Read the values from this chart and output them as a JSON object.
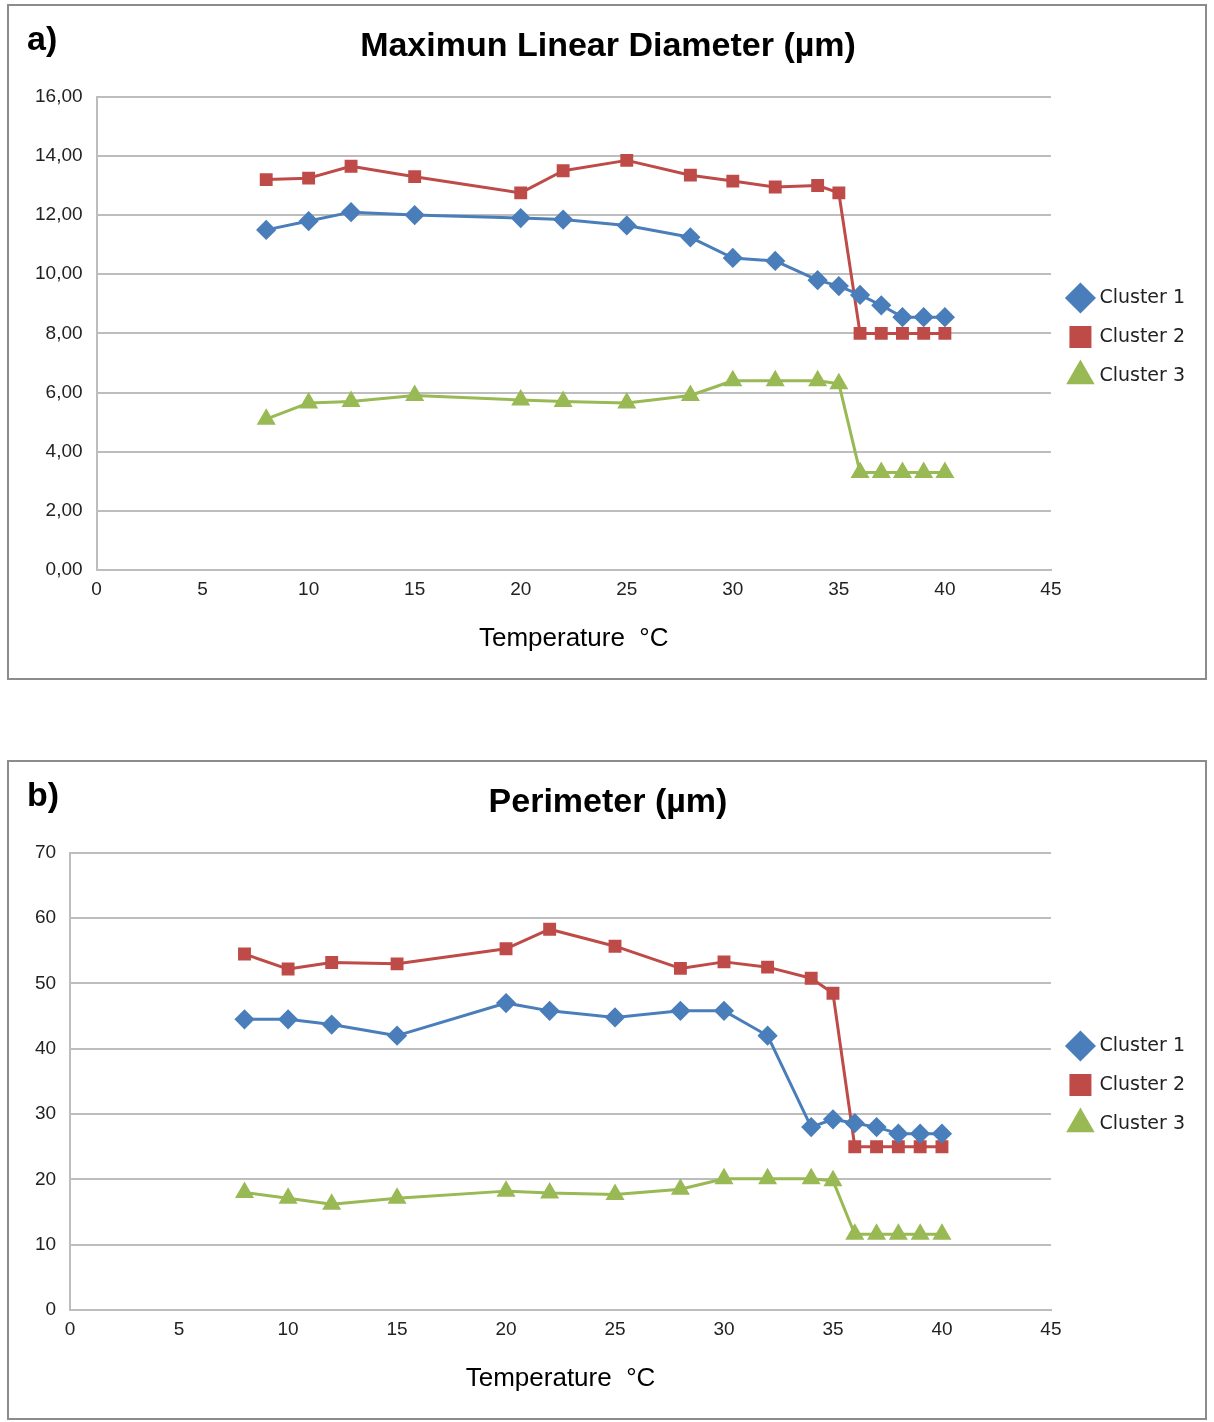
{
  "chart_data": [
    {
      "type": "line",
      "title": "Maximun Linear Diameter (µm)",
      "xlabel": "Temperature  °C",
      "annotations": [
        "a)"
      ],
      "legend": "right",
      "grid": "y",
      "x": [
        8,
        10,
        12,
        15,
        20,
        22,
        25,
        28,
        30,
        32,
        34,
        35,
        36,
        37,
        38,
        39,
        40
      ],
      "xlim": [
        0,
        45
      ],
      "xticks": [
        0,
        5,
        10,
        15,
        20,
        25,
        30,
        35,
        40,
        45
      ],
      "ylim": [
        0,
        16
      ],
      "yticks": [
        {
          "value": 0,
          "label": "0,00"
        },
        {
          "value": 2,
          "label": "2,00"
        },
        {
          "value": 4,
          "label": "4,00"
        },
        {
          "value": 6,
          "label": "6,00"
        },
        {
          "value": 8,
          "label": "8,00"
        },
        {
          "value": 10,
          "label": "10,00"
        },
        {
          "value": 12,
          "label": "12,00"
        },
        {
          "value": 14,
          "label": "14,00"
        },
        {
          "value": 16,
          "label": "16,00"
        }
      ],
      "series": [
        {
          "name": "Cluster 1",
          "color": "#4a7ebb",
          "marker": "diamond",
          "values": [
            11.5,
            11.8,
            12.1,
            12.0,
            11.9,
            11.85,
            11.65,
            11.25,
            10.55,
            10.45,
            9.8,
            9.6,
            9.3,
            8.95,
            8.55,
            8.55,
            8.55
          ]
        },
        {
          "name": "Cluster 2",
          "color": "#be4b48",
          "marker": "square",
          "values": [
            13.2,
            13.25,
            13.65,
            13.3,
            12.75,
            13.5,
            13.85,
            13.35,
            13.15,
            12.95,
            13.0,
            12.75,
            8.0,
            8.0,
            8.0,
            8.0,
            8.0
          ]
        },
        {
          "name": "Cluster 3",
          "color": "#98b954",
          "marker": "triangle",
          "values": [
            5.1,
            5.65,
            5.7,
            5.9,
            5.75,
            5.7,
            5.65,
            5.9,
            6.4,
            6.4,
            6.4,
            6.3,
            3.3,
            3.3,
            3.3,
            3.3,
            3.3
          ]
        }
      ]
    },
    {
      "type": "line",
      "title": "Perimeter (µm)",
      "xlabel": "Temperature  °C",
      "annotations": [
        "b)"
      ],
      "legend": "right",
      "grid": "y",
      "x": [
        8,
        10,
        12,
        15,
        20,
        22,
        25,
        28,
        30,
        32,
        34,
        35,
        36,
        37,
        38,
        39,
        40
      ],
      "xlim": [
        0,
        45
      ],
      "xticks": [
        0,
        5,
        10,
        15,
        20,
        25,
        30,
        35,
        40,
        45
      ],
      "ylim": [
        0,
        70
      ],
      "yticks": [
        0,
        10,
        20,
        30,
        40,
        50,
        60,
        70
      ],
      "series": [
        {
          "name": "Cluster 1",
          "color": "#4a7ebb",
          "marker": "diamond",
          "values": [
            44.5,
            44.5,
            43.7,
            42,
            47,
            45.8,
            44.8,
            45.8,
            45.8,
            42,
            28,
            29.2,
            28.6,
            28,
            27,
            27,
            27
          ]
        },
        {
          "name": "Cluster 2",
          "color": "#be4b48",
          "marker": "square",
          "values": [
            54.5,
            52.2,
            53.2,
            53,
            55.3,
            58.3,
            55.7,
            52.3,
            53.3,
            52.5,
            50.8,
            48.5,
            25,
            25,
            25,
            25,
            25
          ]
        },
        {
          "name": "Cluster 3",
          "color": "#98b954",
          "marker": "triangle",
          "values": [
            18,
            17.1,
            16.2,
            17.1,
            18.2,
            17.9,
            17.7,
            18.5,
            20.1,
            20.1,
            20.1,
            19.8,
            11.6,
            11.6,
            11.6,
            11.6,
            11.6
          ]
        }
      ]
    }
  ]
}
